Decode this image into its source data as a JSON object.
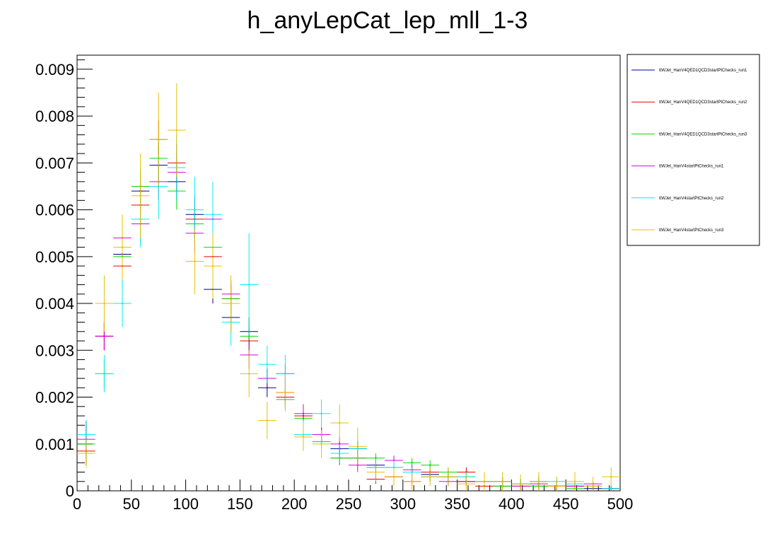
{
  "chart_data": {
    "type": "scatter",
    "title": "h_anyLepCat_lep_mll_1-3",
    "xlabel": "",
    "ylabel": "",
    "xlim": [
      0,
      500
    ],
    "ylim": [
      0,
      0.0093
    ],
    "x_ticks": [
      0,
      50,
      100,
      150,
      200,
      250,
      300,
      350,
      400,
      450,
      500
    ],
    "x_tick_labels": [
      "0",
      "50",
      "100",
      "150",
      "200",
      "250",
      "300",
      "350",
      "400",
      "450",
      "500"
    ],
    "y_ticks": [
      0,
      0.001,
      0.002,
      0.003,
      0.004,
      0.005,
      0.006,
      0.007,
      0.008,
      0.009
    ],
    "y_tick_labels": [
      "0",
      "0.001",
      "0.002",
      "0.003",
      "0.004",
      "0.005",
      "0.006",
      "0.007",
      "0.008",
      "0.009"
    ],
    "bin_width": 16.67,
    "bin_centers": [
      8.33,
      25,
      41.67,
      58.33,
      75,
      91.67,
      108.33,
      125,
      141.67,
      158.33,
      175,
      191.67,
      208.33,
      225,
      241.67,
      258.33,
      275,
      291.67,
      308.33,
      325,
      341.67,
      358.33,
      375,
      391.67,
      408.33,
      425,
      441.67,
      458.33,
      475,
      491.67
    ],
    "legend_position": "right",
    "series": [
      {
        "name": "ttWJet_HanV4QED1QCD3startPtChecks_run1",
        "color": "#000099",
        "values": [
          0.0012,
          0.0033,
          0.00505,
          0.0064,
          0.00695,
          0.0066,
          0.0059,
          0.0043,
          0.0037,
          0.0034,
          0.0022,
          0.0025,
          0.0016,
          0.0012,
          0.0009,
          0.0009,
          0.00055,
          0.0003,
          0.0004,
          0.00035,
          0.0003,
          0.0002,
          0.0002,
          0.0002,
          0.00015,
          0.0001,
          0.0001,
          0.0001,
          5e-05,
          5e-05
        ],
        "errors": [
          0.0003,
          0.0003,
          0.0003,
          0.0004,
          0.0004,
          0.0004,
          0.0004,
          0.0003,
          0.0003,
          0.0003,
          0.0002,
          0.0002,
          0.0002,
          0.00015,
          0.00015,
          0.00015,
          0.0001,
          0.0001,
          0.0001,
          0.0001,
          0.0001,
          0.0001,
          0.0001,
          0.0001,
          0.0001,
          0.0001,
          0.0001,
          0.0001,
          5e-05,
          5e-05
        ]
      },
      {
        "name": "ttWJet_HanV4QED1QCD3startPtChecks_run2",
        "color": "#ee0000",
        "values": [
          0.00085,
          0.0033,
          0.0048,
          0.0061,
          0.0075,
          0.007,
          0.0058,
          0.005,
          0.0041,
          0.0032,
          0.0024,
          0.002,
          0.0016,
          0.0012,
          0.0007,
          0.0007,
          0.00025,
          0.0003,
          0.0002,
          0.0004,
          0.0003,
          0.0004,
          0.0001,
          0.0001,
          0.0001,
          0.0002,
          0.0001,
          0.0001,
          0.0001,
          5e-05
        ],
        "errors": [
          0.0003,
          0.0003,
          0.0003,
          0.0004,
          0.0004,
          0.0004,
          0.0004,
          0.0003,
          0.0003,
          0.0003,
          0.0002,
          0.0002,
          0.0002,
          0.00015,
          0.00015,
          0.00015,
          0.0001,
          0.0001,
          0.0001,
          0.0001,
          0.0001,
          0.0001,
          0.0001,
          0.0001,
          0.0001,
          0.0001,
          0.0001,
          0.0001,
          5e-05,
          5e-05
        ]
      },
      {
        "name": "ttWJet_HanV4QED1QCD3startPtChecks_run3",
        "color": "#00dd00",
        "values": [
          0.001,
          0.0025,
          0.005,
          0.0065,
          0.0071,
          0.0064,
          0.0057,
          0.0052,
          0.0041,
          0.0033,
          0.0024,
          0.00195,
          0.00155,
          0.00105,
          0.0007,
          0.0007,
          0.0007,
          0.0005,
          0.0006,
          0.00055,
          0.0004,
          0.0003,
          0.0002,
          0.0001,
          0.00015,
          0.0001,
          0.0001,
          5e-05,
          0.0001,
          5e-05
        ],
        "errors": [
          0.0003,
          0.0003,
          0.0003,
          0.0004,
          0.0004,
          0.0004,
          0.0004,
          0.0003,
          0.0003,
          0.0003,
          0.0002,
          0.0002,
          0.0002,
          0.00015,
          0.00015,
          0.00015,
          0.0001,
          0.0001,
          0.0001,
          0.0001,
          0.0001,
          0.0001,
          0.0001,
          0.0001,
          0.0001,
          0.0001,
          0.0001,
          0.0001,
          5e-05,
          5e-05
        ]
      },
      {
        "name": "ttWJet_HanV4startPtChecks_run1",
        "color": "#dd00dd",
        "values": [
          0.0011,
          0.0033,
          0.0054,
          0.0057,
          0.0066,
          0.0068,
          0.0055,
          0.0058,
          0.0042,
          0.0029,
          0.0024,
          0.0021,
          0.00165,
          0.0012,
          0.001,
          0.00055,
          0.0005,
          0.00065,
          0.00045,
          0.0003,
          0.0002,
          0.0002,
          0.0002,
          0.0002,
          0.0001,
          0.00015,
          0.0001,
          0.0001,
          0.00015,
          5e-05
        ],
        "errors": [
          0.0003,
          0.0003,
          0.0003,
          0.0004,
          0.0004,
          0.0004,
          0.0004,
          0.0003,
          0.0003,
          0.0003,
          0.0002,
          0.0002,
          0.0002,
          0.00015,
          0.00015,
          0.00015,
          0.0001,
          0.0001,
          0.0001,
          0.0001,
          0.0001,
          0.0001,
          0.0001,
          0.0001,
          0.0001,
          0.0001,
          0.0001,
          0.0001,
          5e-05,
          5e-05
        ]
      },
      {
        "name": "ttWJet_HanV4startPtChecks_run2",
        "color": "#00eeee",
        "values": [
          0.0012,
          0.0025,
          0.004,
          0.0058,
          0.0065,
          0.0069,
          0.006,
          0.0059,
          0.0036,
          0.0044,
          0.0027,
          0.0025,
          0.0012,
          0.00165,
          0.0008,
          0.0009,
          0.0005,
          0.0005,
          0.0004,
          0.0003,
          0.0003,
          0.0003,
          0.0002,
          0.0002,
          0.00015,
          0.0002,
          0.0002,
          0.00015,
          0.0001,
          5e-05
        ],
        "errors": [
          0.0003,
          0.0004,
          0.0005,
          0.0006,
          0.0007,
          0.0007,
          0.0007,
          0.0007,
          0.0005,
          0.0011,
          0.0004,
          0.0004,
          0.0003,
          0.0003,
          0.0002,
          0.0002,
          0.00015,
          0.00015,
          0.0001,
          0.0001,
          0.0001,
          0.0001,
          0.0001,
          0.0001,
          0.0001,
          0.0001,
          0.0001,
          0.0001,
          5e-05,
          5e-05
        ]
      },
      {
        "name": "ttWJet_HanV4startPtChecks_run3",
        "color": "#e8c000",
        "values": [
          0.0008,
          0.004,
          0.0052,
          0.0063,
          0.0075,
          0.0077,
          0.0049,
          0.0048,
          0.004,
          0.0025,
          0.0015,
          0.0021,
          0.00115,
          0.001,
          0.00145,
          0.00095,
          0.0004,
          0.0003,
          0.0002,
          0.0003,
          0.0003,
          0.00015,
          0.0002,
          0.0002,
          0.00015,
          0.0002,
          0.0001,
          0.0002,
          0.0001,
          0.0003
        ],
        "errors": [
          0.0003,
          0.0006,
          0.0007,
          0.0009,
          0.001,
          0.001,
          0.0007,
          0.0007,
          0.0006,
          0.0005,
          0.0004,
          0.0004,
          0.0003,
          0.0003,
          0.0004,
          0.0004,
          0.0002,
          0.0002,
          0.0002,
          0.0002,
          0.0002,
          0.0002,
          0.0002,
          0.0002,
          0.0002,
          0.0002,
          0.0002,
          0.0002,
          0.0002,
          0.0002
        ]
      }
    ]
  }
}
